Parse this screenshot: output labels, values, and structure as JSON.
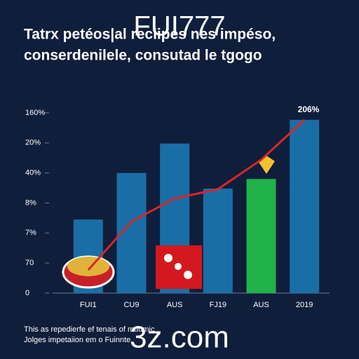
{
  "chart_data": {
    "type": "bar",
    "title": "FUI777",
    "subtitle": [
      "Tatrx petéos|al reciipes nes impéso,",
      "conserdenilele, consutad le tgogo"
    ],
    "categories": [
      "FUI1",
      "CU9",
      "AUS",
      "FJ19",
      "AUS",
      "2019"
    ],
    "values": [
      2.45,
      4.0,
      4.98,
      3.48,
      3.8,
      5.77
    ],
    "colors": [
      "#1a6ea6",
      "#1a6ea6",
      "#1a6ea6",
      "#1a6ea6",
      "#21b24a",
      "#1a6ea6"
    ],
    "line": {
      "color": "#d8262b",
      "values": [
        0.77,
        2.38,
        3.15,
        3.46,
        4.44,
        5.77
      ]
    },
    "annotation": "206%",
    "ylim": [
      0,
      6
    ],
    "yticks": [
      {
        "value": 0,
        "label": "0"
      },
      {
        "value": 1,
        "label": "70"
      },
      {
        "value": 2,
        "label": "7%"
      },
      {
        "value": 3,
        "label": "8%"
      },
      {
        "value": 4,
        "label": "40%"
      },
      {
        "value": 5,
        "label": "20%"
      },
      {
        "value": 6,
        "label": "160%"
      }
    ],
    "grid": false,
    "footer": [
      "This as repedierfe ef tenais of muumic",
      "Jolges impetaiion em o Fuinnte."
    ],
    "watermark": "3z.com"
  }
}
